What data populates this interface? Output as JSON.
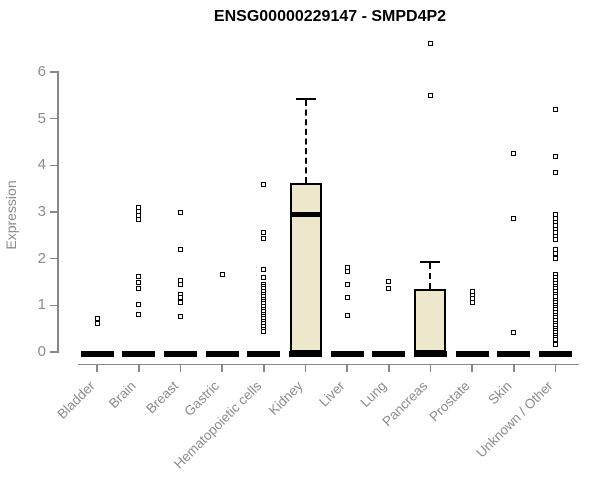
{
  "page": {
    "background": "#ffffff"
  },
  "chart_data": {
    "type": "boxplot",
    "title": "ENSG00000229147 - SMPD4P2",
    "ylabel": "Expression",
    "xlabel": "",
    "ylim": [
      0,
      6
    ],
    "yticks": [
      0,
      1,
      2,
      3,
      4,
      5,
      6
    ],
    "grid": false,
    "legend": false,
    "marker": "open-square",
    "colors": {
      "box_fill": "#ede7cb",
      "box_border": "#000000",
      "median": "#000000",
      "marker": "#000000",
      "axis": "#878787",
      "tick_text": "#8c8c8c",
      "title_text": "#000000"
    },
    "categories": [
      "Bladder",
      "Brain",
      "Breast",
      "Gastric",
      "Hematopoietic cells",
      "Kidney",
      "Liver",
      "Lung",
      "Pancreas",
      "Prostate",
      "Skin",
      "Unknown / Other"
    ],
    "groups": [
      {
        "label": "Bladder",
        "zero_bar": true,
        "points": [
          0.71,
          0.62
        ]
      },
      {
        "label": "Brain",
        "zero_bar": true,
        "points": [
          3.09,
          3.0,
          2.92,
          2.83,
          1.61,
          1.48,
          1.37,
          1.01,
          0.81
        ]
      },
      {
        "label": "Breast",
        "zero_bar": true,
        "points": [
          2.98,
          2.19,
          1.54,
          1.44,
          1.24,
          1.16,
          1.07,
          0.75
        ]
      },
      {
        "label": "Gastric",
        "zero_bar": true,
        "points": [
          1.67
        ]
      },
      {
        "label": "Hematopoietic cells",
        "zero_bar": true,
        "points": [
          3.58,
          2.57,
          2.43,
          1.76,
          1.6,
          1.45,
          1.4,
          1.35,
          1.29,
          1.24,
          1.19,
          1.13,
          1.08,
          1.03,
          0.97,
          0.92,
          0.87,
          0.81,
          0.76,
          0.71,
          0.65,
          0.6,
          0.55,
          0.49,
          0.44
        ]
      },
      {
        "label": "Kidney",
        "zero_bar": true,
        "points": [],
        "box": {
          "whisker_low": 0,
          "q1": 0,
          "median": 2.94,
          "q3": 3.62,
          "whisker_high": 5.4
        }
      },
      {
        "label": "Liver",
        "zero_bar": true,
        "points": [
          1.8,
          1.72,
          1.44,
          1.16,
          0.79
        ]
      },
      {
        "label": "Lung",
        "zero_bar": true,
        "points": [
          1.5,
          1.35
        ]
      },
      {
        "label": "Pancreas",
        "zero_bar": true,
        "points": [
          6.6,
          5.5
        ],
        "box": {
          "whisker_low": 0,
          "q1": 0,
          "median": 0,
          "q3": 1.35,
          "whisker_high": 1.9
        }
      },
      {
        "label": "Prostate",
        "zero_bar": true,
        "points": [
          1.29,
          1.22,
          1.15,
          1.07
        ]
      },
      {
        "label": "Skin",
        "zero_bar": true,
        "points": [
          4.26,
          2.87,
          0.41
        ]
      },
      {
        "label": "Unknown / Other",
        "zero_bar": true,
        "points": [
          5.2,
          4.18,
          3.84,
          2.94,
          2.86,
          2.78,
          2.72,
          2.62,
          2.55,
          2.47,
          2.4,
          2.19,
          2.1,
          2.01,
          1.65,
          1.59,
          1.53,
          1.47,
          1.41,
          1.35,
          1.29,
          1.23,
          1.18,
          1.11,
          1.06,
          1.0,
          0.95,
          0.9,
          0.85,
          0.79,
          0.73,
          0.68,
          0.62,
          0.56,
          0.51,
          0.47,
          0.41,
          0.36,
          0.3,
          0.26,
          0.15
        ]
      }
    ]
  }
}
